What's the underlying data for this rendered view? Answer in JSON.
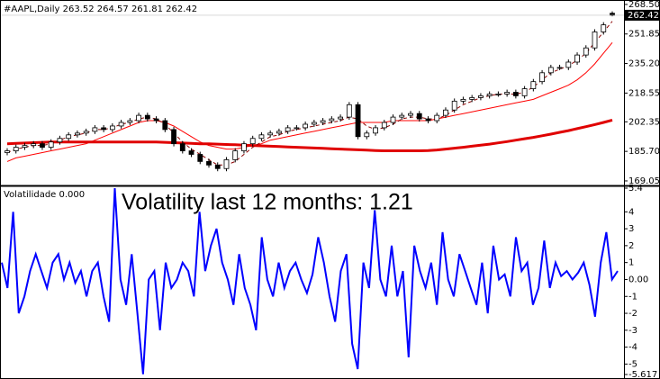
{
  "chart_data": [
    {
      "type": "candlestick",
      "title": "#AAPL,Daily 263.52 264.57 261.81 262.42",
      "open": [
        185,
        186,
        188,
        189,
        190,
        188,
        191,
        193,
        195,
        196,
        197,
        199,
        198,
        200,
        202,
        203,
        206,
        204,
        203,
        198,
        190,
        186,
        184,
        180,
        178,
        176,
        181,
        186,
        190,
        193,
        195,
        196,
        197,
        199,
        199,
        201,
        202,
        203,
        204,
        205,
        212,
        194,
        196,
        199,
        202,
        205,
        206,
        207,
        204,
        203,
        206,
        209,
        214,
        215,
        216,
        217,
        218,
        218,
        219,
        217,
        221,
        225,
        230,
        233,
        233,
        236,
        240,
        244,
        253,
        263.52
      ],
      "high": [
        187.5,
        189.5,
        190.5,
        191.5,
        191.5,
        192.5,
        194.5,
        196.5,
        197.5,
        198.5,
        200.5,
        200.5,
        201.5,
        203.5,
        204.5,
        207.5,
        207.5,
        205.5,
        204.5,
        199.5,
        191.5,
        187.5,
        185.5,
        181.5,
        179.5,
        182.5,
        187.5,
        191.5,
        194.5,
        196.5,
        197.5,
        198.5,
        200.5,
        200.5,
        202.5,
        203.5,
        204.5,
        205.5,
        206.5,
        213.5,
        213.5,
        197.5,
        200.5,
        203.5,
        206.5,
        207.5,
        208.5,
        208.5,
        205.5,
        207.5,
        210.5,
        215.5,
        216.5,
        217.5,
        218.5,
        219.5,
        219.5,
        220.5,
        220.5,
        222.5,
        226.5,
        231.5,
        234.5,
        234.5,
        237.5,
        241.5,
        245.5,
        254.5,
        258.5,
        264.57
      ],
      "low": [
        183.5,
        184.5,
        186.5,
        187.5,
        186.5,
        186.5,
        189.5,
        191.5,
        193.5,
        194.5,
        195.5,
        196.5,
        196.5,
        198.5,
        200.5,
        201.5,
        202.5,
        201.5,
        196.5,
        188.5,
        184.5,
        182.5,
        178.5,
        176.5,
        174.5,
        174.5,
        179.5,
        184.5,
        188.5,
        191.5,
        193.5,
        194.5,
        195.5,
        197.5,
        197.5,
        199.5,
        200.5,
        201.5,
        202.5,
        203.5,
        192.5,
        192.5,
        194.5,
        197.5,
        200.5,
        203.5,
        204.5,
        202.5,
        201.5,
        201.5,
        204.5,
        207.5,
        212.5,
        213.5,
        214.5,
        215.5,
        216.5,
        216.5,
        215.5,
        215.5,
        219.5,
        223.5,
        228.5,
        231.5,
        231.5,
        234.5,
        238.5,
        242.5,
        251.5,
        261.81
      ],
      "close": [
        186,
        188,
        189,
        190,
        188,
        191,
        193,
        195,
        196,
        197,
        199,
        198,
        200,
        202,
        203,
        206,
        204,
        203,
        198,
        190,
        186,
        184,
        180,
        178,
        176,
        181,
        186,
        190,
        193,
        195,
        196,
        197,
        199,
        199,
        201,
        202,
        203,
        204,
        205,
        212,
        194,
        196,
        199,
        202,
        205,
        206,
        207,
        204,
        203,
        206,
        209,
        214,
        215,
        216,
        217,
        218,
        218,
        219,
        217,
        221,
        225,
        230,
        233,
        233,
        236,
        240,
        244,
        253,
        257,
        262.42
      ],
      "series": [
        {
          "color": "#ff0000",
          "width": 1,
          "dashed": false,
          "values": [
            180,
            182,
            183,
            184,
            185,
            186,
            187,
            188,
            189,
            190,
            192,
            194,
            196,
            198,
            200,
            202,
            203,
            203,
            202,
            200,
            197,
            194,
            191,
            189,
            188,
            187,
            187,
            188,
            189,
            190,
            192,
            193,
            194,
            195,
            196,
            197,
            198,
            199,
            200,
            201,
            202,
            202,
            202,
            202,
            203,
            203,
            203,
            203,
            203,
            204,
            205,
            206,
            207,
            208,
            209,
            210,
            211,
            212,
            213,
            214,
            215,
            217,
            219,
            221,
            223,
            226,
            230,
            235,
            241,
            247
          ]
        },
        {
          "color": "#e00000",
          "width": 3,
          "dashed": false,
          "values": [
            190,
            190.2,
            190.4,
            190.6,
            190.8,
            191,
            191,
            191,
            191,
            191,
            191,
            191,
            191,
            191,
            191,
            191,
            191,
            191,
            190.8,
            190.6,
            190.4,
            190.2,
            190,
            190,
            189.8,
            189.6,
            189.4,
            189.2,
            189,
            188.8,
            188.6,
            188.4,
            188.2,
            188,
            187.8,
            187.6,
            187.4,
            187.2,
            187,
            186.8,
            186.6,
            186.4,
            186.2,
            186,
            186,
            186,
            186,
            186,
            186.2,
            186.5,
            187,
            187.5,
            188,
            188.6,
            189.2,
            189.8,
            190.5,
            191.2,
            192,
            192.8,
            193.6,
            194.5,
            195.4,
            196.4,
            197.4,
            198.5,
            199.6,
            200.8,
            202,
            203.3
          ]
        },
        {
          "color": "#8b0000",
          "width": 1,
          "dashed": true,
          "values": [
            185,
            187,
            188,
            189,
            189,
            190,
            192,
            194,
            195,
            196,
            198,
            198,
            199,
            201,
            202,
            204,
            205,
            204,
            201,
            196,
            191,
            187,
            184,
            181,
            178,
            178,
            180,
            184,
            188,
            191,
            194,
            195,
            197,
            198,
            199,
            200,
            201,
            202,
            203,
            205,
            204,
            200,
            198,
            199,
            201,
            204,
            205,
            205,
            204,
            204,
            206,
            209,
            212,
            214,
            216,
            217,
            218,
            218,
            218,
            219,
            222,
            226,
            230,
            232,
            234,
            237,
            241,
            247,
            253,
            259
          ]
        }
      ],
      "last_price": 262.42,
      "ylim": [
        167,
        271
      ],
      "yticks": [
        {
          "value": 268.5,
          "label": "268.50"
        },
        251.85,
        {
          "value": 235.2,
          "label": "235.20"
        },
        218.55,
        202.35,
        {
          "value": 185.7,
          "label": "185.70"
        },
        {
          "value": 169.05,
          "label": "169.05"
        }
      ]
    },
    {
      "type": "line",
      "title": "Volatilidade 0.000",
      "annotation": "Volatility last 12 months: 1.21",
      "series": [
        {
          "color": "#0000ff",
          "values": [
            1,
            -0.5,
            4,
            -2,
            -1,
            0.5,
            1.5,
            0.5,
            -0.5,
            1,
            1.5,
            0,
            1,
            -0.2,
            0.5,
            -1,
            0.5,
            1,
            -1,
            -2.5,
            5.4,
            0,
            -1.5,
            1.5,
            -2,
            -5.6,
            0,
            0.5,
            -3,
            1,
            -0.5,
            0,
            1,
            0.5,
            -1,
            4,
            0.5,
            2,
            3,
            1,
            0,
            -1.5,
            1.5,
            -0.5,
            -1.5,
            -3,
            2.5,
            0,
            -1,
            1,
            -0.5,
            0.5,
            1,
            0,
            -0.8,
            0.3,
            2.5,
            1,
            -1,
            -2.5,
            0.5,
            1.5,
            -3.8,
            -5.3,
            1,
            -0.5,
            4.1,
            0,
            -1,
            2,
            -1,
            0.5,
            -4.6,
            2,
            0.5,
            -0.5,
            1,
            -1.5,
            2.8,
            0,
            -1,
            1.5,
            0.5,
            -0.5,
            -1.5,
            1,
            -2,
            2,
            0,
            0.3,
            -1,
            2.5,
            0.5,
            1,
            -1.5,
            -0.5,
            2.3,
            -0.5,
            1,
            0.2,
            0.5,
            0,
            0.4,
            1,
            -0.3,
            -2.2,
            1,
            2.8,
            0,
            0.5
          ]
        }
      ],
      "ylim": [
        -5.617,
        5.4
      ],
      "yticks": [
        5.4,
        4,
        3,
        2,
        1,
        {
          "value": 0,
          "label": "0.00"
        },
        -1,
        -2,
        -3,
        -4,
        -5,
        -5.617
      ]
    }
  ]
}
